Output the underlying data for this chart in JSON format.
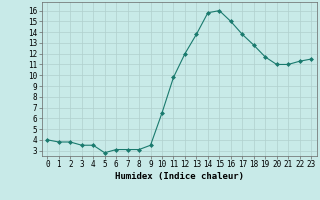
{
  "x": [
    0,
    1,
    2,
    3,
    4,
    5,
    6,
    7,
    8,
    9,
    10,
    11,
    12,
    13,
    14,
    15,
    16,
    17,
    18,
    19,
    20,
    21,
    22,
    23
  ],
  "y": [
    4.0,
    3.8,
    3.8,
    3.5,
    3.5,
    2.8,
    3.1,
    3.1,
    3.1,
    3.5,
    6.5,
    9.8,
    12.0,
    13.8,
    15.8,
    16.0,
    15.0,
    13.8,
    12.8,
    11.7,
    11.0,
    11.0,
    11.3,
    11.5
  ],
  "line_color": "#1a7a6e",
  "marker": "D",
  "marker_size": 2.0,
  "bg_color": "#c8eae8",
  "grid_color": "#b0d0ce",
  "xlabel": "Humidex (Indice chaleur)",
  "xlim": [
    -0.5,
    23.5
  ],
  "ylim": [
    2.5,
    16.8
  ],
  "yticks": [
    3,
    4,
    5,
    6,
    7,
    8,
    9,
    10,
    11,
    12,
    13,
    14,
    15,
    16
  ],
  "xticks": [
    0,
    1,
    2,
    3,
    4,
    5,
    6,
    7,
    8,
    9,
    10,
    11,
    12,
    13,
    14,
    15,
    16,
    17,
    18,
    19,
    20,
    21,
    22,
    23
  ],
  "xtick_labels": [
    "0",
    "1",
    "2",
    "3",
    "4",
    "5",
    "6",
    "7",
    "8",
    "9",
    "10",
    "11",
    "12",
    "13",
    "14",
    "15",
    "16",
    "17",
    "18",
    "19",
    "20",
    "21",
    "22",
    "23"
  ],
  "ytick_labels": [
    "3",
    "4",
    "5",
    "6",
    "7",
    "8",
    "9",
    "10",
    "11",
    "12",
    "13",
    "14",
    "15",
    "16"
  ],
  "xlabel_fontsize": 6.5,
  "tick_fontsize": 5.5
}
